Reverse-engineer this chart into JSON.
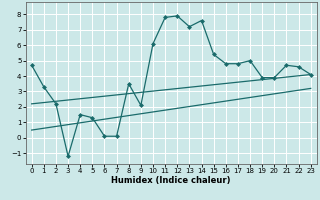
{
  "xlabel": "Humidex (Indice chaleur)",
  "xlim": [
    -0.5,
    23.5
  ],
  "ylim": [
    -1.7,
    8.8
  ],
  "yticks": [
    -1,
    0,
    1,
    2,
    3,
    4,
    5,
    6,
    7,
    8
  ],
  "xticks": [
    0,
    1,
    2,
    3,
    4,
    5,
    6,
    7,
    8,
    9,
    10,
    11,
    12,
    13,
    14,
    15,
    16,
    17,
    18,
    19,
    20,
    21,
    22,
    23
  ],
  "bg_color": "#cce8e8",
  "line_color": "#1a6b6b",
  "grid_color": "#ffffff",
  "line1_x": [
    0,
    1,
    2,
    3,
    4,
    5,
    6,
    7,
    8,
    9,
    10,
    11,
    12,
    13,
    14,
    15,
    16,
    17,
    18,
    19,
    20,
    21,
    22,
    23
  ],
  "line1_y": [
    4.7,
    3.3,
    2.2,
    -1.2,
    1.5,
    1.3,
    0.1,
    0.1,
    3.5,
    2.1,
    6.1,
    7.8,
    7.9,
    7.2,
    7.6,
    5.4,
    4.8,
    4.8,
    5.0,
    3.9,
    3.9,
    4.7,
    4.6,
    4.1
  ],
  "line2_x": [
    0,
    23
  ],
  "line2_y": [
    2.2,
    4.1
  ],
  "line3_x": [
    0,
    23
  ],
  "line3_y": [
    0.5,
    3.2
  ],
  "xlabel_fontsize": 6.0,
  "tick_fontsize": 5.0
}
